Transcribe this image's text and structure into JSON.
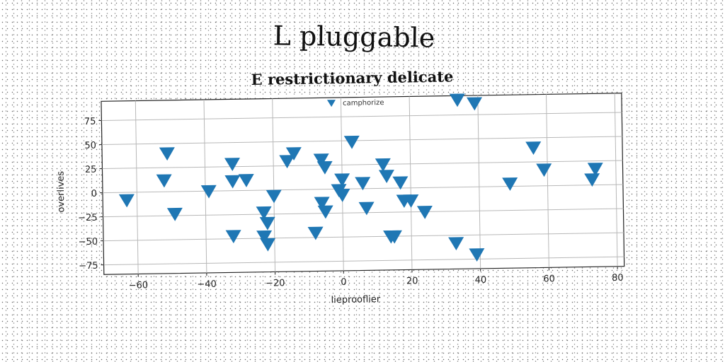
{
  "title": "L pluggable",
  "chart_data": {
    "type": "scatter",
    "title": "E restrictionary delicate",
    "xlabel": "lieprooflier",
    "ylabel": "overlives",
    "xlim": [
      -70,
      82
    ],
    "ylim": [
      -85,
      95
    ],
    "xticks": [
      -60,
      -40,
      -20,
      0,
      20,
      40,
      60,
      80
    ],
    "yticks": [
      -75,
      -50,
      -25,
      0,
      25,
      50,
      75
    ],
    "grid": true,
    "legend": "top-center",
    "marker": "triangle-down",
    "color": "#1f77b4",
    "series": [
      {
        "name": "camphorize",
        "points": [
          [
            -63,
            -8
          ],
          [
            -51,
            40
          ],
          [
            -52,
            12
          ],
          [
            -49,
            -23
          ],
          [
            -39,
            0
          ],
          [
            -32,
            28
          ],
          [
            -32,
            10
          ],
          [
            -28,
            11
          ],
          [
            -32,
            -47
          ],
          [
            -20,
            -6
          ],
          [
            -23,
            -23
          ],
          [
            -22,
            -34
          ],
          [
            -23,
            -48
          ],
          [
            -22,
            -56
          ],
          [
            -16,
            30
          ],
          [
            -14,
            38
          ],
          [
            -8,
            -45
          ],
          [
            -6,
            31
          ],
          [
            -5,
            23
          ],
          [
            -6,
            -14
          ],
          [
            -5,
            -23
          ],
          [
            -1,
            -1
          ],
          [
            0,
            10
          ],
          [
            0,
            -6
          ],
          [
            3,
            49
          ],
          [
            6,
            6
          ],
          [
            7,
            -20
          ],
          [
            12,
            25
          ],
          [
            13,
            13
          ],
          [
            14,
            -50
          ],
          [
            15,
            -50
          ],
          [
            17,
            6
          ],
          [
            18,
            -13
          ],
          [
            20,
            -13
          ],
          [
            24,
            -25
          ],
          [
            33,
            -58
          ],
          [
            34,
            91
          ],
          [
            39,
            87
          ],
          [
            39,
            -70
          ],
          [
            49,
            3
          ],
          [
            56,
            40
          ],
          [
            59,
            17
          ],
          [
            74,
            17
          ],
          [
            73,
            6
          ]
        ]
      }
    ]
  }
}
